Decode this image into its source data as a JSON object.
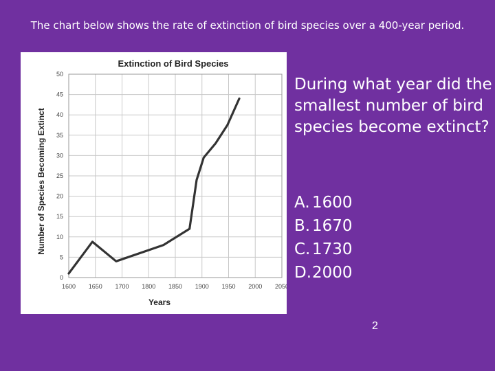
{
  "slide": {
    "header": "The chart below shows the rate of extinction of bird species over a 400-year period.",
    "question": "During what year did the smallest number of bird species become extinct?",
    "choices": [
      {
        "letter": "A.",
        "text": "1600"
      },
      {
        "letter": "B.",
        "text": "1670"
      },
      {
        "letter": "C.",
        "text": "1730"
      },
      {
        "letter": "D.",
        "text": "2000"
      }
    ],
    "page_number": "2",
    "colors": {
      "background": "#7030a0",
      "text": "#ffffff",
      "chart_bg": "#ffffff",
      "line": "#333333",
      "grid": "#c8c8c8"
    }
  },
  "chart_data": {
    "type": "line",
    "title": "Extinction of Bird Species",
    "xlabel": "Years",
    "ylabel": "Number of Species Becoming Extinct",
    "xlim": [
      1600,
      2050
    ],
    "ylim": [
      0,
      50
    ],
    "x_ticks": [
      "1600",
      "1650",
      "1700",
      "1800",
      "1850",
      "1900",
      "1950",
      "2000",
      "2050"
    ],
    "y_ticks": [
      "0",
      "5",
      "10",
      "15",
      "20",
      "25",
      "30",
      "35",
      "40",
      "45",
      "50"
    ],
    "grid": true,
    "series": [
      {
        "points": [
          [
            1600,
            1
          ],
          [
            1650,
            8.8
          ],
          [
            1700,
            4
          ],
          [
            1800,
            8
          ],
          [
            1855,
            12
          ],
          [
            1870,
            24
          ],
          [
            1885,
            29.5
          ],
          [
            1910,
            33
          ],
          [
            1935,
            37.5
          ],
          [
            1960,
            44
          ]
        ]
      }
    ]
  }
}
